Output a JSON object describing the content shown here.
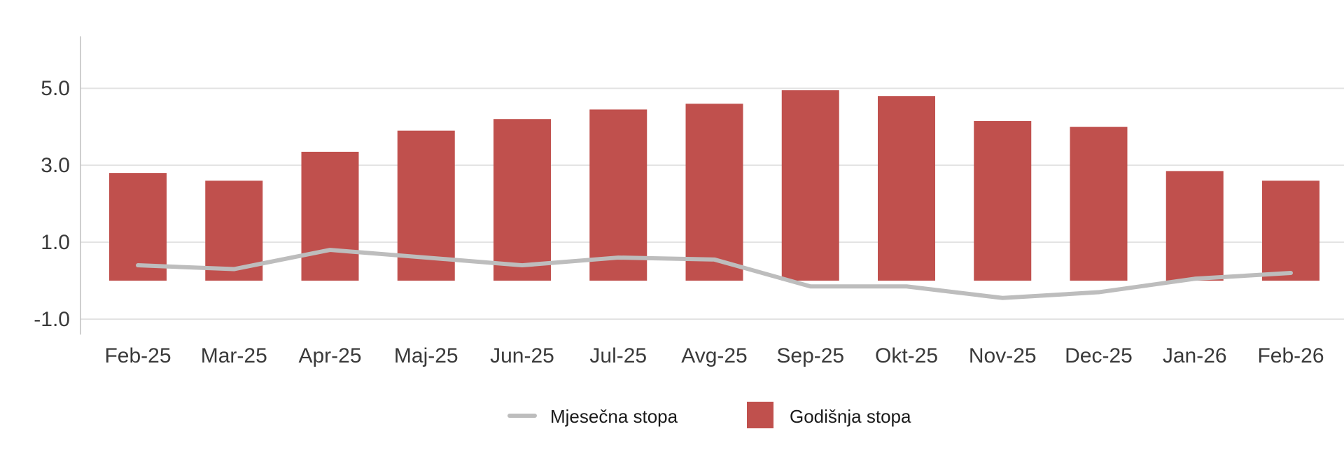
{
  "chart_data": {
    "type": "bar",
    "categories": [
      "Feb-25",
      "Mar-25",
      "Apr-25",
      "Maj-25",
      "Jun-25",
      "Jul-25",
      "Avg-25",
      "Sep-25",
      "Okt-25",
      "Nov-25",
      "Dec-25",
      "Jan-26",
      "Feb-26"
    ],
    "y_ticks": [
      "5.0",
      "3.0",
      "1.0",
      "-1.0"
    ],
    "y_tick_values": [
      5.0,
      3.0,
      1.0,
      -1.0
    ],
    "ylim": [
      -1.4,
      6.35
    ],
    "grid": true,
    "legend_position": "bottom",
    "series": [
      {
        "name": "Mjesečna stopa",
        "kind": "line",
        "color": "#bdbdbd",
        "values": [
          0.4,
          0.3,
          0.8,
          0.6,
          0.4,
          0.6,
          0.55,
          -0.15,
          -0.15,
          -0.45,
          -0.3,
          0.05,
          0.2
        ]
      },
      {
        "name": "Godišnja stopa",
        "kind": "bar",
        "color": "#c0504d",
        "values": [
          2.8,
          2.6,
          3.35,
          3.9,
          4.2,
          4.45,
          4.6,
          4.95,
          4.8,
          4.15,
          4.0,
          2.85,
          2.6
        ]
      }
    ]
  }
}
